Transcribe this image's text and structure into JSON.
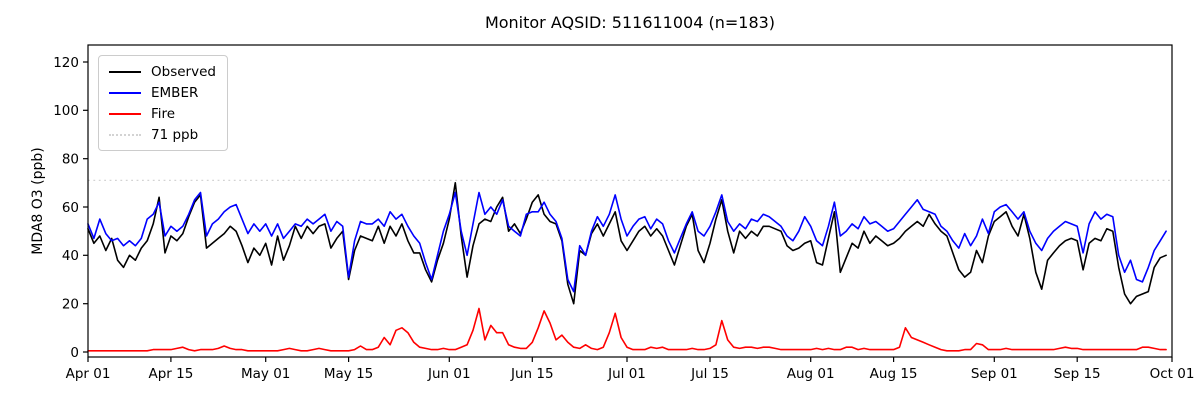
{
  "figure": {
    "background": "#ffffff",
    "frame_color": "#000000"
  },
  "chart_data": {
    "type": "line",
    "title": "Monitor AQSID: 511611004 (n=183)",
    "xlabel": "",
    "ylabel": "MDA8 O3 (ppb)",
    "n": 183,
    "x_unit": "days since Apr 01",
    "x_max_day": 183,
    "ylim": [
      -2,
      127
    ],
    "y_ticks": [
      0,
      20,
      40,
      60,
      80,
      100,
      120
    ],
    "x_ticks": [
      {
        "label": "Apr 01",
        "day": 0
      },
      {
        "label": "Apr 15",
        "day": 14
      },
      {
        "label": "May 01",
        "day": 30
      },
      {
        "label": "May 15",
        "day": 44
      },
      {
        "label": "Jun 01",
        "day": 61
      },
      {
        "label": "Jun 15",
        "day": 75
      },
      {
        "label": "Jul 01",
        "day": 91
      },
      {
        "label": "Jul 15",
        "day": 105
      },
      {
        "label": "Aug 01",
        "day": 122
      },
      {
        "label": "Aug 15",
        "day": 136
      },
      {
        "label": "Sep 01",
        "day": 153
      },
      {
        "label": "Sep 15",
        "day": 167
      },
      {
        "label": "Oct 01",
        "day": 183
      }
    ],
    "ref_line": {
      "value": 71,
      "label": "71 ppb",
      "color": "#d3d3d3",
      "style": "dotted"
    },
    "series": [
      {
        "name": "Observed",
        "color": "#000000",
        "values": [
          51,
          45,
          48,
          42,
          47,
          38,
          35,
          40,
          38,
          43,
          46,
          53,
          64,
          41,
          48,
          46,
          49,
          56,
          62,
          65,
          43,
          45,
          47,
          49,
          52,
          50,
          44,
          37,
          43,
          40,
          45,
          36,
          48,
          38,
          44,
          52,
          47,
          52,
          49,
          52,
          53,
          43,
          47,
          50,
          30,
          42,
          48,
          47,
          46,
          52,
          45,
          52,
          48,
          53,
          46,
          41,
          41,
          34,
          29,
          38,
          45,
          55,
          70,
          48,
          31,
          44,
          53,
          55,
          54,
          60,
          64,
          50,
          53,
          49,
          55,
          62,
          65,
          57,
          54,
          53,
          46,
          28,
          20,
          42,
          40,
          49,
          53,
          48,
          53,
          58,
          46,
          42,
          46,
          50,
          52,
          48,
          51,
          48,
          42,
          36,
          44,
          52,
          57,
          42,
          37,
          45,
          55,
          63,
          50,
          41,
          50,
          47,
          50,
          48,
          52,
          52,
          51,
          50,
          44,
          42,
          43,
          45,
          46,
          37,
          36,
          47,
          58,
          33,
          39,
          45,
          43,
          50,
          45,
          48,
          46,
          44,
          45,
          47,
          50,
          52,
          54,
          52,
          57,
          53,
          50,
          48,
          41,
          34,
          31,
          33,
          42,
          37,
          48,
          54,
          56,
          58,
          52,
          48,
          57,
          47,
          33,
          26,
          38,
          41,
          44,
          46,
          47,
          46,
          34,
          45,
          47,
          46,
          51,
          50,
          35,
          24,
          20,
          23,
          24,
          25,
          35,
          39,
          40
        ]
      },
      {
        "name": "EMBER",
        "color": "#0000ff",
        "values": [
          53,
          47,
          55,
          49,
          46,
          47,
          44,
          46,
          44,
          47,
          55,
          57,
          62,
          48,
          52,
          50,
          52,
          57,
          63,
          66,
          48,
          53,
          55,
          58,
          60,
          61,
          55,
          49,
          53,
          50,
          53,
          48,
          53,
          47,
          50,
          53,
          52,
          55,
          53,
          55,
          57,
          50,
          54,
          52,
          31,
          46,
          54,
          53,
          53,
          55,
          52,
          58,
          55,
          57,
          52,
          48,
          45,
          37,
          30,
          40,
          50,
          57,
          66,
          50,
          40,
          53,
          66,
          57,
          60,
          57,
          63,
          52,
          50,
          48,
          57,
          58,
          58,
          62,
          57,
          54,
          47,
          30,
          25,
          44,
          40,
          50,
          56,
          52,
          57,
          65,
          55,
          48,
          52,
          55,
          56,
          51,
          55,
          53,
          46,
          41,
          47,
          53,
          58,
          50,
          48,
          52,
          58,
          65,
          54,
          50,
          53,
          51,
          55,
          54,
          57,
          56,
          54,
          52,
          48,
          46,
          50,
          56,
          52,
          46,
          44,
          52,
          62,
          48,
          50,
          53,
          51,
          56,
          53,
          54,
          52,
          50,
          51,
          54,
          57,
          60,
          63,
          59,
          58,
          57,
          52,
          50,
          46,
          43,
          49,
          44,
          48,
          55,
          49,
          58,
          60,
          61,
          58,
          55,
          58,
          50,
          45,
          42,
          47,
          50,
          52,
          54,
          53,
          52,
          41,
          53,
          58,
          55,
          57,
          56,
          40,
          33,
          38,
          30,
          29,
          35,
          42,
          46,
          50
        ]
      },
      {
        "name": "Fire",
        "color": "#ff0000",
        "values": [
          0.5,
          0.5,
          0.5,
          0.5,
          0.5,
          0.5,
          0.5,
          0.5,
          0.5,
          0.5,
          0.5,
          1,
          1,
          1,
          1,
          1.5,
          2,
          1,
          0.5,
          1,
          1,
          1,
          1.5,
          2.5,
          1.5,
          1,
          1,
          0.5,
          0.5,
          0.5,
          0.5,
          0.5,
          0.5,
          1,
          1.5,
          1,
          0.5,
          0.5,
          1,
          1.5,
          1,
          0.5,
          0.5,
          0.5,
          0.5,
          1,
          2.5,
          1,
          1,
          2,
          6,
          3,
          9,
          10,
          8,
          4,
          2,
          1.5,
          1,
          1,
          1.5,
          1,
          1,
          2,
          3,
          9,
          18,
          5,
          11,
          8,
          8,
          3,
          2,
          1.5,
          1.5,
          4,
          10,
          17,
          12,
          5,
          7,
          4,
          2,
          1.5,
          3,
          1.5,
          1,
          2,
          8,
          16,
          6,
          2,
          1,
          1,
          1,
          2,
          1.5,
          2,
          1,
          1,
          1,
          1,
          1.5,
          1,
          1,
          1.5,
          3,
          13,
          5,
          2,
          1.5,
          2,
          2,
          1.5,
          2,
          2,
          1.5,
          1,
          1,
          1,
          1,
          1,
          1,
          1.5,
          1,
          1.5,
          1,
          1,
          2,
          2,
          1,
          1.5,
          1,
          1,
          1,
          1,
          1,
          2,
          10,
          6,
          5,
          4,
          3,
          2,
          1,
          0.5,
          0.5,
          0.5,
          1,
          1,
          3.5,
          3,
          1,
          1,
          1,
          1.5,
          1,
          1,
          1,
          1,
          1,
          1,
          1,
          1,
          1.5,
          2,
          1.5,
          1.5,
          1,
          1,
          1,
          1,
          1,
          1,
          1,
          1,
          1,
          1,
          2,
          2,
          1.5,
          1,
          1
        ]
      }
    ],
    "legend": {
      "position": "upper-left",
      "entries": [
        {
          "label": "Observed",
          "color": "#000000",
          "style": "solid"
        },
        {
          "label": "EMBER",
          "color": "#0000ff",
          "style": "solid"
        },
        {
          "label": "Fire",
          "color": "#ff0000",
          "style": "solid"
        },
        {
          "label": "71 ppb",
          "color": "#d3d3d3",
          "style": "dotted"
        }
      ]
    }
  }
}
